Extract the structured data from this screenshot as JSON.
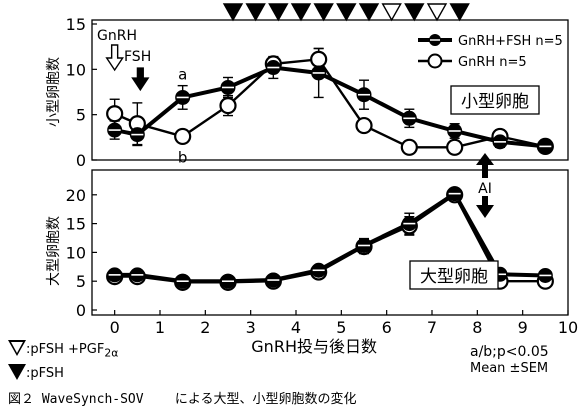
{
  "chart_data": [
    {
      "type": "line",
      "panel": "small-follicles",
      "ylabel": "小型卵胞数",
      "ylim": [
        0,
        15
      ],
      "yticks": [
        0,
        5,
        10,
        15
      ],
      "annotation_box": "小型卵胞",
      "point_letters": [
        {
          "text": "a",
          "series": "GnRH+FSH n=5",
          "x": 1.5
        },
        {
          "text": "b",
          "series": "GnRH n=5",
          "x": 1.5
        }
      ],
      "arrows": [
        {
          "label": "GnRH",
          "x": 0,
          "style": "outlined"
        },
        {
          "label": "FSH",
          "x": 0.5,
          "style": "filled"
        }
      ],
      "series": [
        {
          "name": "GnRH+FSH n=5",
          "marker": "filled",
          "x": [
            0,
            0.5,
            1.5,
            2.5,
            3.5,
            4.5,
            5.5,
            6.5,
            7.5,
            8.5,
            9.5
          ],
          "values": [
            3.3,
            2.8,
            6.9,
            8.0,
            10.2,
            9.6,
            7.2,
            4.6,
            3.2,
            2.0,
            1.5
          ],
          "errors": [
            1.0,
            1.2,
            1.3,
            1.1,
            1.2,
            2.7,
            1.6,
            1.0,
            0.8,
            0.6,
            0.4
          ]
        },
        {
          "name": "GnRH n=5",
          "marker": "open",
          "x": [
            0,
            0.5,
            1.5,
            2.5,
            3.5,
            4.5,
            5.5,
            6.5,
            7.5,
            8.5,
            9.5
          ],
          "values": [
            5.1,
            4.0,
            2.6,
            6.0,
            10.6,
            11.1,
            3.8,
            1.4,
            1.4,
            2.6,
            1.5
          ],
          "errors": [
            1.6,
            2.3,
            0.6,
            1.1,
            0.8,
            1.2,
            0.6,
            0.3,
            0.3,
            0.7,
            0.3
          ]
        }
      ]
    },
    {
      "type": "line",
      "panel": "large-follicles",
      "ylabel": "大型卵胞数",
      "ylim": [
        0,
        25
      ],
      "yticks": [
        0,
        5,
        10,
        15,
        20
      ],
      "annotation_box": "大型卵胞",
      "xlabel": "GnRH投与後日数",
      "xlim": [
        -0.5,
        10
      ],
      "xticks": [
        0,
        1,
        2,
        3,
        4,
        5,
        6,
        7,
        8,
        9,
        10
      ],
      "ai_marker": {
        "label": "AI",
        "x": 8.5
      },
      "series": [
        {
          "name": "GnRH+FSH n=5",
          "marker": "filled",
          "x": [
            0,
            0.5,
            1.5,
            2.5,
            3.5,
            4.5,
            5.5,
            6.5,
            7.5,
            8.5,
            9.5
          ],
          "values": [
            6.1,
            6.1,
            5.0,
            5.0,
            5.2,
            6.9,
            11.2,
            15.0,
            20.2,
            6.2,
            6.0
          ],
          "errors": [
            0.4,
            0.4,
            0.3,
            0.3,
            0.4,
            0.6,
            1.2,
            1.8,
            0.9,
            0.5,
            0.5
          ]
        },
        {
          "name": "GnRH n=5",
          "marker": "open",
          "x": [
            0,
            0.5,
            1.5,
            2.5,
            3.5,
            4.5,
            5.5,
            6.5,
            7.5,
            8.5,
            9.5
          ],
          "values": [
            5.8,
            5.8,
            4.8,
            4.8,
            5.0,
            6.6,
            11.0,
            14.6,
            20.0,
            5.0,
            5.0
          ],
          "errors": [
            0.4,
            0.4,
            0.3,
            0.3,
            0.4,
            0.6,
            1.2,
            1.6,
            0.9,
            0.5,
            0.5
          ]
        }
      ]
    }
  ],
  "injection_schedule": {
    "x": [
      2.5,
      3,
      3.5,
      4,
      4.5,
      5,
      5.5,
      6,
      6.5,
      7,
      7.5
    ],
    "kind": [
      "pFSH",
      "pFSH",
      "pFSH",
      "pFSH",
      "pFSH",
      "pFSH",
      "pFSH",
      "pFSH+PGF",
      "pFSH",
      "pFSH+PGF",
      "pFSH"
    ],
    "legend_open_prefix": ":pFSH +PGF",
    "legend_open_sub": "2α",
    "legend_filled": ":pFSH"
  },
  "stats": {
    "significance": "a/b;p<0.05",
    "mean": "Mean ±SEM"
  },
  "caption": "図２ WaveSynch-SOV    による大型、小型卵胞数の変化"
}
